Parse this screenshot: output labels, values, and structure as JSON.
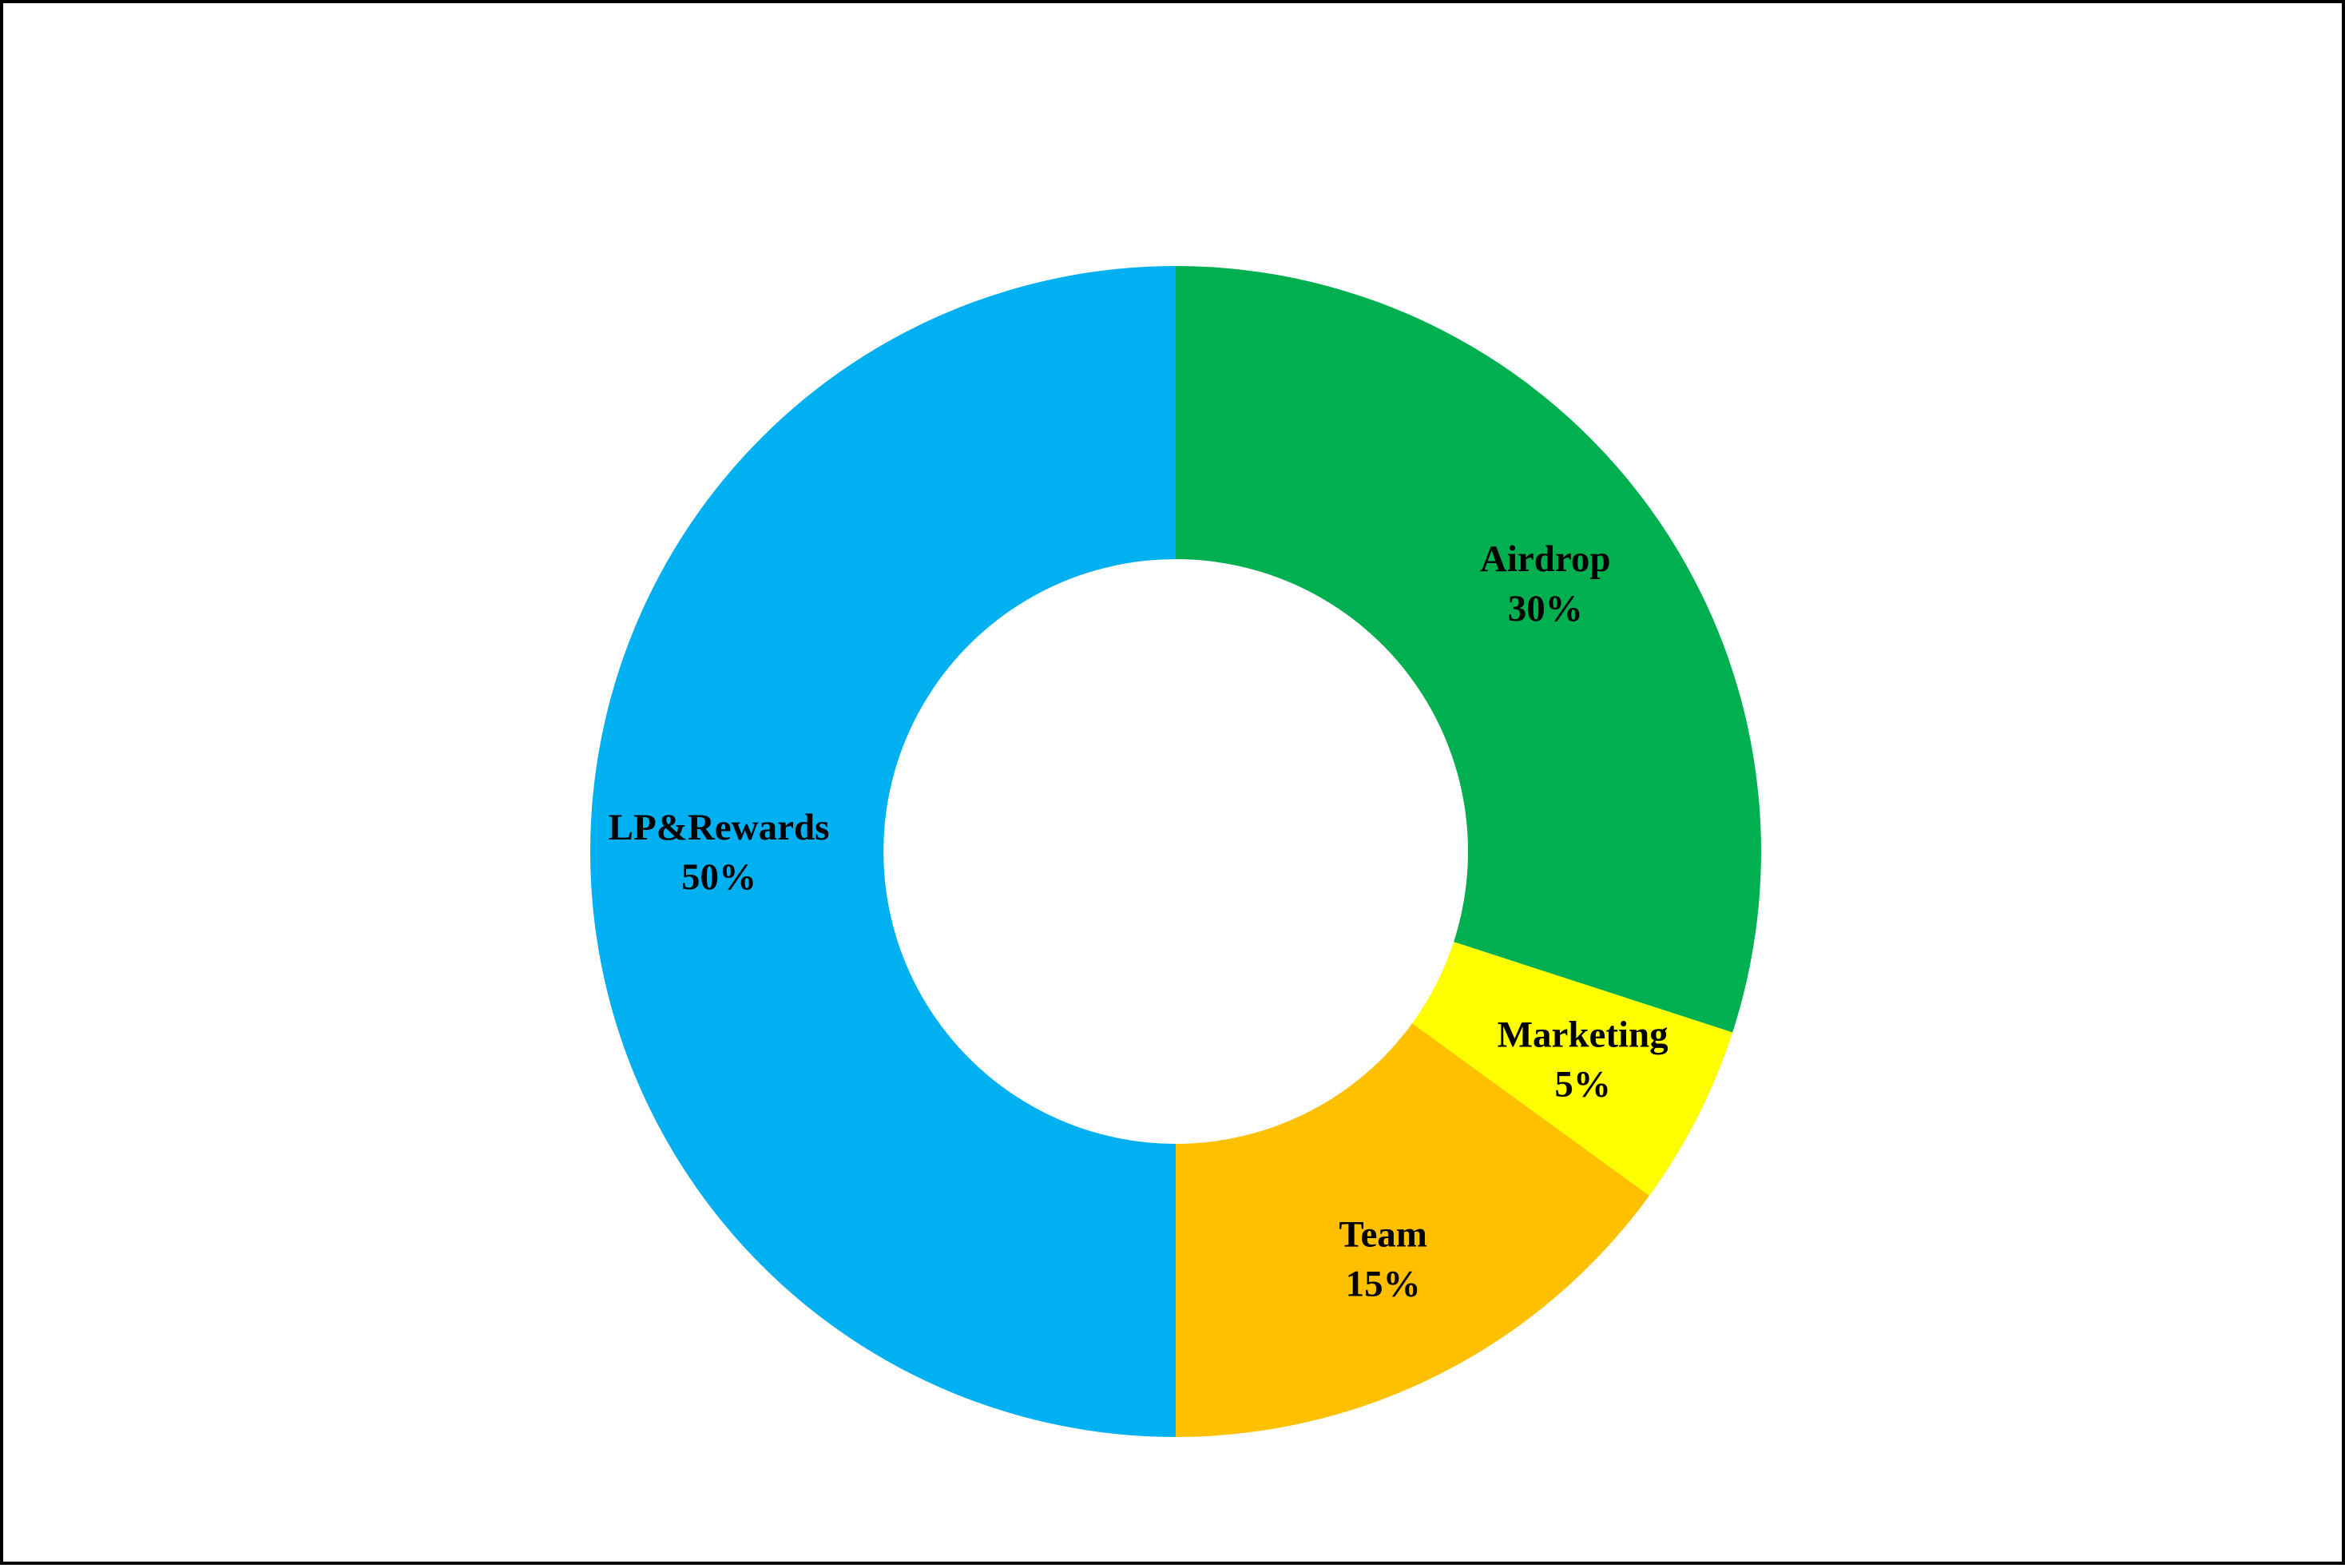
{
  "chart_data": {
    "type": "pie",
    "variant": "donut",
    "title": "",
    "legend": "none",
    "slices": [
      {
        "label": "Airdrop",
        "value": 30,
        "value_text": "30%",
        "color": "#00B050"
      },
      {
        "label": "Marketing",
        "value": 5,
        "value_text": "5%",
        "color": "#FFFF00"
      },
      {
        "label": "Team",
        "value": 15,
        "value_text": "15%",
        "color": "#FFC000"
      },
      {
        "label": "LP&Rewards",
        "value": 50,
        "value_text": "50%",
        "color": "#00B0F0"
      }
    ]
  }
}
